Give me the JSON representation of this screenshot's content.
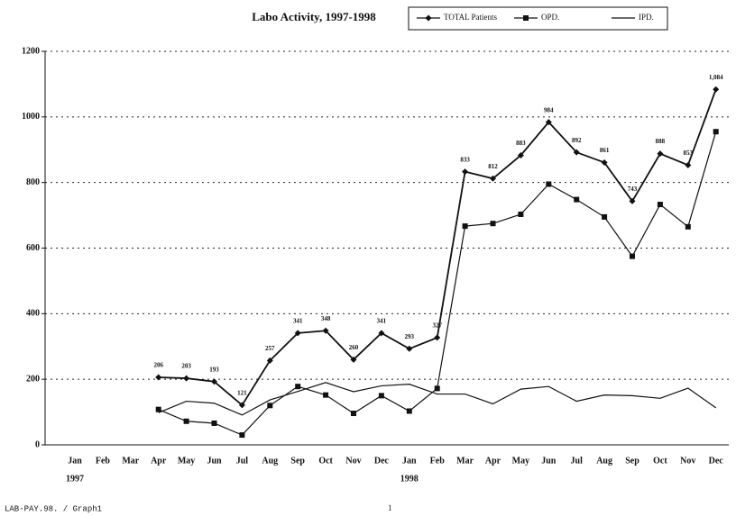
{
  "chart_data": {
    "type": "line",
    "title": "Labo Activity, 1997-1998",
    "categories": [
      "Jan",
      "Feb",
      "Mar",
      "Apr",
      "May",
      "Jun",
      "Jul",
      "Aug",
      "Sep",
      "Oct",
      "Nov",
      "Dec",
      "Jan",
      "Feb",
      "Mar",
      "Apr",
      "May",
      "Jun",
      "Jul",
      "Aug",
      "Sep",
      "Oct",
      "Nov",
      "Dec"
    ],
    "years": [
      "1997",
      "1998"
    ],
    "series": [
      {
        "name": "TOTAL Patients",
        "color": "#111111",
        "marker": "diamond",
        "values": [
          null,
          null,
          null,
          206,
          203,
          193,
          121,
          257,
          341,
          348,
          260,
          341,
          293,
          327,
          833,
          812,
          883,
          984,
          892,
          861,
          743,
          888,
          853,
          1084
        ],
        "value_labels": [
          null,
          null,
          null,
          "206",
          "203",
          "193",
          "121",
          "257",
          "341",
          "348",
          "260",
          "341",
          "293",
          "327",
          "833",
          "812",
          "883",
          "984",
          "892",
          "861",
          "743",
          "888",
          "853",
          "1,084"
        ]
      },
      {
        "name": "OPD.",
        "color": "#111111",
        "marker": "square",
        "values": [
          null,
          null,
          null,
          108,
          72,
          66,
          30,
          120,
          178,
          152,
          96,
          150,
          103,
          172,
          667,
          675,
          703,
          795,
          748,
          695,
          575,
          733,
          665,
          955
        ]
      },
      {
        "name": "IPD.",
        "color": "#111111",
        "marker": "none",
        "values": [
          null,
          null,
          null,
          98,
          133,
          127,
          91,
          137,
          163,
          190,
          162,
          180,
          185,
          155,
          155,
          125,
          170,
          178,
          133,
          152,
          150,
          142,
          173,
          113
        ]
      }
    ],
    "ylim": [
      0,
      1200
    ],
    "yticks": [
      0,
      200,
      400,
      600,
      800,
      1000,
      1200
    ],
    "grid": true,
    "legend": "top-right",
    "footer": {
      "left": "LAB-PAY.98. / Graph1",
      "center": "1"
    }
  }
}
